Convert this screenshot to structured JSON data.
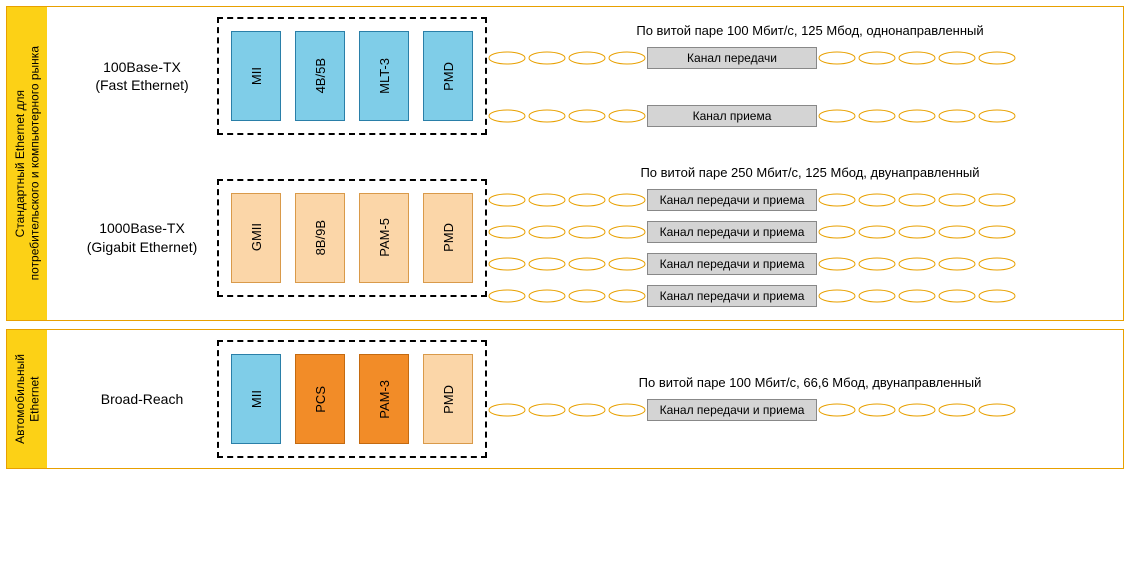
{
  "colors": {
    "yellow": "#fcd116",
    "yellowBorder": "#e8a000",
    "blueFill": "#7fcde8",
    "blueStroke": "#2a7fa8",
    "peachFill": "#fbd6a8",
    "peachStroke": "#d99a4a",
    "orangeFill": "#f28c28",
    "orangeStroke": "#c46a10",
    "greyFill": "#d4d4d4",
    "greyStroke": "#888888",
    "twistStroke": "#e8a000",
    "dashStroke": "#000000"
  },
  "sections": [
    {
      "id": "consumer",
      "label": "Стандартный Ethernet для\nпотребительского и компьютерного рынка",
      "rows": [
        {
          "id": "fast",
          "label_l1": "100Base-TX",
          "label_l2": "(Fast Ethernet)",
          "blocks": [
            {
              "text": "MII",
              "fill": "#7fcde8",
              "stroke": "#2a7fa8"
            },
            {
              "text": "4B/5B",
              "fill": "#7fcde8",
              "stroke": "#2a7fa8"
            },
            {
              "text": "MLT-3",
              "fill": "#7fcde8",
              "stroke": "#2a7fa8"
            },
            {
              "text": "PMD",
              "fill": "#7fcde8",
              "stroke": "#2a7fa8"
            }
          ],
          "caption": "По витой паре 100 Мбит/с, 125 Мбод, однонаправленный",
          "channels": [
            {
              "label": "Канал передачи"
            },
            {
              "label": "Канал приема"
            }
          ],
          "channelGap": 30
        },
        {
          "id": "gigabit",
          "label_l1": "1000Base-TX",
          "label_l2": "(Gigabit Ethernet)",
          "blocks": [
            {
              "text": "GMII",
              "fill": "#fbd6a8",
              "stroke": "#d99a4a"
            },
            {
              "text": "8B/9B",
              "fill": "#fbd6a8",
              "stroke": "#d99a4a"
            },
            {
              "text": "PAM-5",
              "fill": "#fbd6a8",
              "stroke": "#d99a4a"
            },
            {
              "text": "PMD",
              "fill": "#fbd6a8",
              "stroke": "#d99a4a"
            }
          ],
          "caption": "По витой паре 250 Мбит/с, 125 Мбод, двунаправленный",
          "channels": [
            {
              "label": "Канал передачи и приема"
            },
            {
              "label": "Канал передачи и приема"
            },
            {
              "label": "Канал передачи и приема"
            },
            {
              "label": "Канал передачи и приема"
            }
          ],
          "channelGap": 4
        }
      ]
    },
    {
      "id": "auto",
      "label": "Автомобильный\nEthernet",
      "rows": [
        {
          "id": "broadreach",
          "label_l1": "Broad-Reach",
          "label_l2": "",
          "blocks": [
            {
              "text": "MII",
              "fill": "#7fcde8",
              "stroke": "#2a7fa8"
            },
            {
              "text": "PCS",
              "fill": "#f28c28",
              "stroke": "#c46a10"
            },
            {
              "text": "PAM-3",
              "fill": "#f28c28",
              "stroke": "#c46a10"
            },
            {
              "text": "PMD",
              "fill": "#fbd6a8",
              "stroke": "#d99a4a"
            }
          ],
          "caption": "По витой паре 100 Мбит/с, 66,6 Мбод, двунаправленный",
          "channels": [
            {
              "label": "Канал передачи и приема"
            }
          ],
          "channelGap": 0
        }
      ]
    }
  ]
}
